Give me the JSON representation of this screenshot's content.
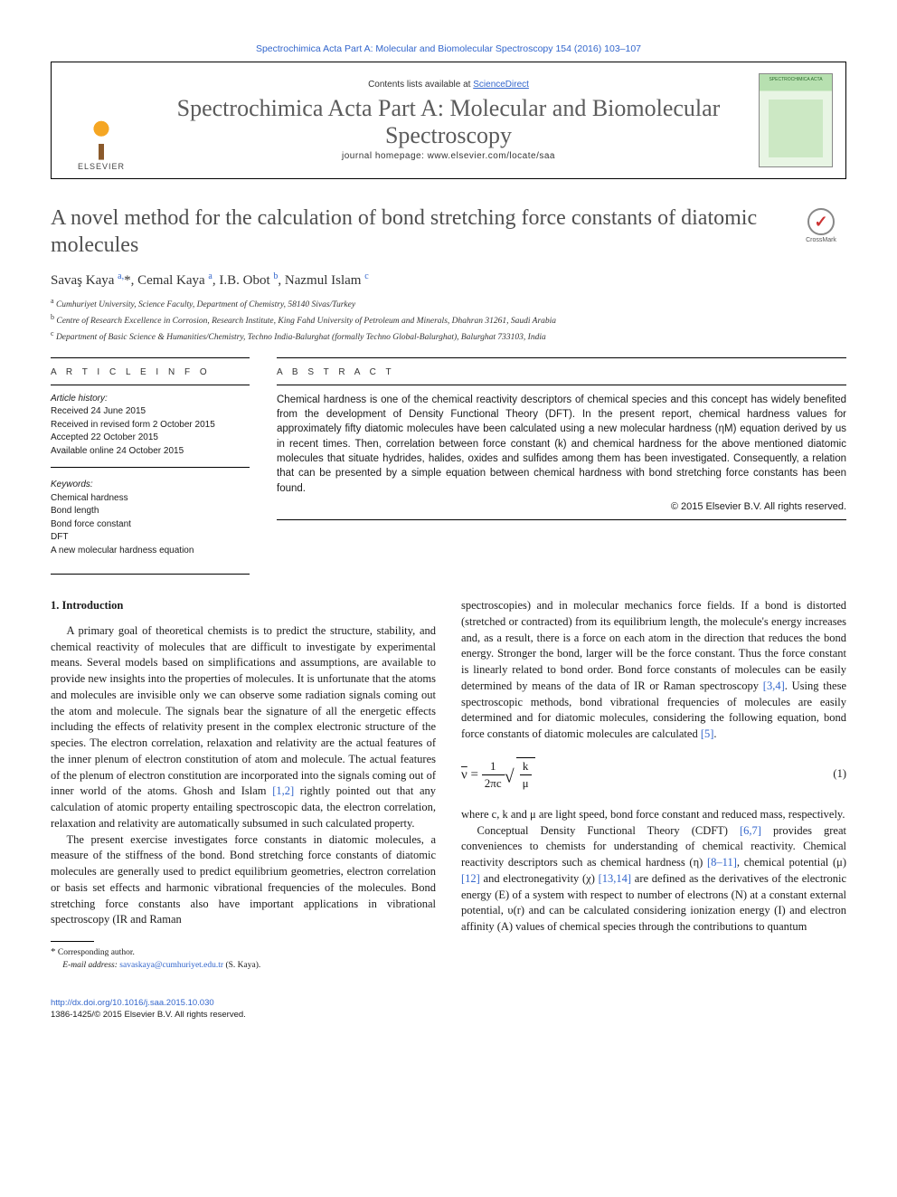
{
  "top_link": "Spectrochimica Acta Part A: Molecular and Biomolecular Spectroscopy 154 (2016) 103–107",
  "header": {
    "contents_prefix": "Contents lists available at ",
    "contents_link": "ScienceDirect",
    "journal_name": "Spectrochimica Acta Part A: Molecular and Biomolecular Spectroscopy",
    "homepage_label": "journal homepage: ",
    "homepage_url": "www.elsevier.com/locate/saa",
    "elsevier": "ELSEVIER",
    "cover_title": "SPECTROCHIMICA ACTA"
  },
  "crossmark": "CrossMark",
  "title": "A novel method for the calculation of bond stretching force constants of diatomic molecules",
  "authors_html": "Savaş Kaya <sup>a,</sup><span class='star'>*</span>, Cemal Kaya <sup>a</sup>, I.B. Obot <sup>b</sup>, Nazmul Islam <sup>c</sup>",
  "affiliations": {
    "a": "Cumhuriyet University, Science Faculty, Department of Chemistry, 58140 Sivas/Turkey",
    "b": "Centre of Research Excellence in Corrosion, Research Institute, King Fahd University of Petroleum and Minerals, Dhahran 31261, Saudi Arabia",
    "c": "Department of Basic Science & Humanities/Chemistry, Techno India-Balurghat (formally Techno Global-Balurghat), Balurghat 733103, India"
  },
  "section_heads": {
    "info": "A R T I C L E   I N F O",
    "abstract": "A B S T R A C T"
  },
  "history": {
    "label": "Article history:",
    "received": "Received 24 June 2015",
    "revised": "Received in revised form 2 October 2015",
    "accepted": "Accepted 22 October 2015",
    "online": "Available online 24 October 2015"
  },
  "keywords": {
    "label": "Keywords:",
    "items": [
      "Chemical hardness",
      "Bond length",
      "Bond force constant",
      "DFT",
      "A new molecular hardness equation"
    ]
  },
  "abstract": "Chemical hardness is one of the chemical reactivity descriptors of chemical species and this concept has widely benefited from the development of Density Functional Theory (DFT). In the present report, chemical hardness values for approximately fifty diatomic molecules have been calculated using a new molecular hardness (ηM) equation derived by us in recent times. Then, correlation between force constant (k) and chemical hardness for the above mentioned diatomic molecules that situate hydrides, halides, oxides and sulfides among them has been investigated. Consequently, a relation that can be presented by a simple equation between chemical hardness with bond stretching force constants has been found.",
  "copyright": "© 2015 Elsevier B.V. All rights reserved.",
  "intro_heading": "1. Introduction",
  "p1": "A primary goal of theoretical chemists is to predict the structure, stability, and chemical reactivity of molecules that are difficult to investigate by experimental means. Several models based on simplifications and assumptions, are available to provide new insights into the properties of molecules. It is unfortunate that the atoms and molecules are invisible only we can observe some radiation signals coming out the atom and molecule. The signals bear the signature of all the energetic effects including the effects of relativity present in the complex electronic structure of the species. The electron correlation, relaxation and relativity are the actual features of the inner plenum of electron constitution of atom and molecule. The actual features of the plenum of electron constitution are incorporated into the signals coming out of inner world of the atoms. Ghosh and Islam ",
  "p1_ref": "[1,2]",
  "p1b": " rightly pointed out that any calculation of atomic property entailing spectroscopic data, the electron correlation, relaxation and relativity are automatically subsumed in such calculated property.",
  "p2": "The present exercise investigates force constants in diatomic molecules, a measure of the stiffness of the bond. Bond stretching force constants of diatomic molecules are generally used to predict equilibrium geometries, electron correlation or basis set effects and harmonic vibrational frequencies of the molecules. Bond stretching force constants also have important applications in vibrational spectroscopy (IR and Raman",
  "p3a": "spectroscopies) and in molecular mechanics force fields. If a bond is distorted (stretched or contracted) from its equilibrium length, the molecule's energy increases and, as a result, there is a force on each atom in the direction that reduces the bond energy. Stronger the bond, larger will be the force constant. Thus the force constant is linearly related to bond order. Bond force constants of molecules can be easily determined by means of the data of IR or Raman spectroscopy ",
  "p3_ref1": "[3,4]",
  "p3b": ". Using these spectroscopic methods, bond vibrational frequencies of molecules are easily determined and for diatomic molecules, considering the following equation, bond force constants of diatomic molecules are calculated ",
  "p3_ref2": "[5]",
  "p3c": ".",
  "eq1_num": "(1)",
  "p4a": "where c, k and μ are light speed, bond force constant and reduced mass, respectively.",
  "p5a": "Conceptual Density Functional Theory (CDFT) ",
  "p5_ref1": "[6,7]",
  "p5b": " provides great conveniences to chemists for understanding of chemical reactivity. Chemical reactivity descriptors such as chemical hardness (η) ",
  "p5_ref2": "[8–11]",
  "p5c": ", chemical potential (μ) ",
  "p5_ref3": "[12]",
  "p5d": " and electronegativity (χ) ",
  "p5_ref4": "[13,14]",
  "p5e": " are defined as the derivatives of the electronic energy (E) of a system with respect to number of electrons (N) at a constant external potential, υ(r) and can be calculated considering ionization energy (I) and electron affinity (A) values of chemical species through the contributions to quantum",
  "corresponding": {
    "label": "Corresponding author.",
    "email_label": "E-mail address:",
    "email": "savaskaya@cumhuriyet.edu.tr",
    "who": "(S. Kaya)."
  },
  "footer": {
    "doi": "http://dx.doi.org/10.1016/j.saa.2015.10.030",
    "issn_line": "1386-1425/© 2015 Elsevier B.V. All rights reserved."
  },
  "colors": {
    "link": "#3366cc",
    "text": "#1a1a1a",
    "title_gray": "#505050",
    "journal_gray": "#5b5b5b",
    "cover_green_dark": "#b7e0b0",
    "cover_green_light": "#e8f5e4"
  },
  "fonts": {
    "body": "Times New Roman",
    "sans": "Arial",
    "title_size_pt": 24,
    "journal_size_pt": 26,
    "body_size_pt": 12.5,
    "abstract_size_pt": 11.5,
    "smallcaps_size_pt": 10
  }
}
